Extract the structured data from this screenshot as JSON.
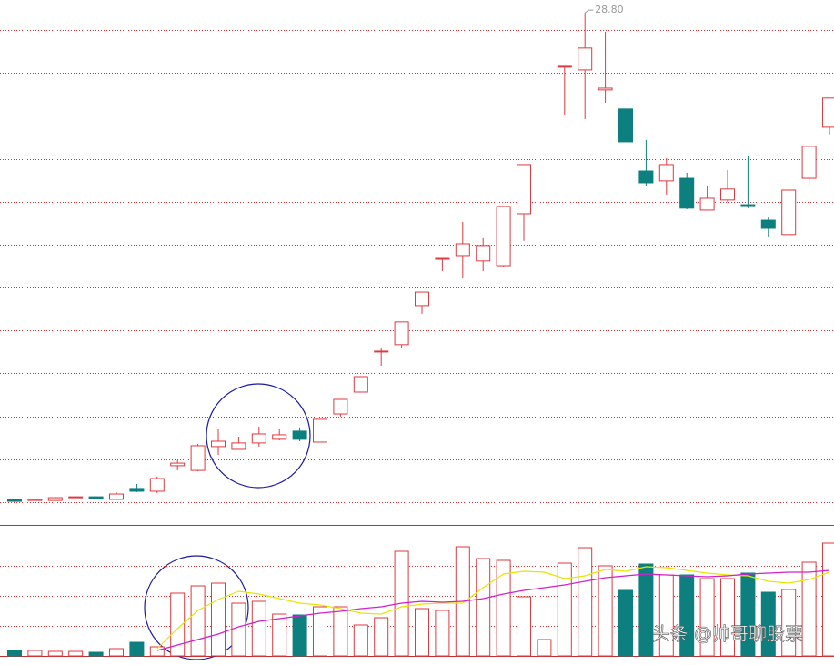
{
  "chart_data": [
    {
      "type": "candlestick",
      "up_color": "#e0393e",
      "down_color": "#0d7f7f",
      "grid": true,
      "ylim": [
        6,
        29.4
      ],
      "yticks": [
        6,
        8,
        10,
        12,
        14,
        16,
        18,
        20,
        22,
        24,
        26,
        28
      ],
      "annotation": "28.80",
      "open": [
        6.13,
        6.08,
        6.08,
        6.21,
        6.25,
        6.13,
        6.64,
        6.51,
        7.7,
        7.48,
        8.59,
        8.46,
        8.76,
        8.93,
        9.31,
        8.8,
        10.11,
        11.13,
        13.0,
        13.34,
        15.16,
        17.32,
        17.49,
        17.24,
        17.02,
        19.44,
        null,
        26.27,
        26.14,
        25.21,
        24.32,
        21.43,
        20.97,
        21.09,
        19.61,
        20.08,
        19.86,
        19.14,
        18.47,
        21.09,
        23.47
      ],
      "high": [
        6.17,
        6.13,
        6.25,
        6.25,
        6.25,
        6.47,
        6.85,
        7.19,
        7.95,
        8.71,
        9.39,
        9.05,
        9.52,
        9.39,
        9.48,
        9.86,
        10.79,
        11.85,
        13.17,
        14.4,
        15.79,
        17.36,
        19.06,
        18.3,
        19.78,
        21.73,
        null,
        26.31,
        28.8,
        27.92,
        24.32,
        22.88,
        22.03,
        21.35,
        20.71,
        21.48,
        22.11,
        19.31,
        20.54,
        22.58,
        24.83
      ],
      "low": [
        6.0,
        6.08,
        6.08,
        6.21,
        6.17,
        6.13,
        6.47,
        6.42,
        7.48,
        7.44,
        8.2,
        8.46,
        8.59,
        8.88,
        8.84,
        8.8,
        9.99,
        11.13,
        12.36,
        13.17,
        14.78,
        16.77,
        16.43,
        16.77,
        16.94,
        18.17,
        null,
        24.06,
        23.85,
        24.61,
        22.79,
        20.71,
        20.33,
        19.65,
        19.61,
        19.99,
        19.7,
        18.38,
        18.47,
        20.71,
        23.13
      ],
      "close": [
        6.04,
        6.13,
        6.21,
        6.25,
        6.17,
        6.38,
        6.51,
        7.1,
        7.82,
        8.63,
        8.84,
        8.76,
        9.18,
        9.14,
        8.93,
        9.86,
        10.79,
        11.85,
        13.04,
        14.4,
        15.79,
        17.36,
        18.04,
        17.96,
        19.78,
        21.73,
        null,
        26.31,
        27.16,
        25.29,
        22.79,
        20.88,
        21.73,
        19.7,
        20.16,
        20.59,
        19.82,
        18.76,
        20.54,
        22.58,
        24.83
      ]
    },
    {
      "type": "bar",
      "ylim": [
        0,
        140
      ],
      "yticks": [
        33,
        66,
        99
      ],
      "grid": true,
      "values": [
        6,
        6,
        5,
        5,
        4,
        8,
        15,
        10,
        69,
        77,
        80,
        58,
        60,
        46,
        45,
        54,
        54,
        34,
        42,
        115,
        52,
        50,
        120,
        107,
        105,
        65,
        18,
        102,
        119,
        99,
        72,
        101,
        89,
        89,
        85,
        85,
        91,
        70,
        73,
        103,
        124
      ],
      "series": [
        {
          "color": "#e6e600",
          "values": [
            null,
            null,
            null,
            null,
            null,
            null,
            null,
            8,
            30,
            50,
            62,
            71,
            68,
            63,
            58,
            56,
            52,
            47,
            46,
            54,
            57,
            58,
            58,
            75,
            90,
            93,
            92,
            85,
            88,
            95,
            93,
            98,
            97,
            94,
            91,
            89,
            88,
            82,
            80,
            84,
            92
          ]
        },
        {
          "color": "#d020d0",
          "values": [
            null,
            null,
            null,
            null,
            null,
            null,
            null,
            6,
            12,
            18,
            24,
            32,
            38,
            41,
            44,
            47,
            49,
            52,
            54,
            58,
            60,
            59,
            60,
            63,
            68,
            72,
            75,
            78,
            82,
            86,
            88,
            90,
            89,
            88,
            87,
            88,
            90,
            91,
            92,
            92,
            94
          ]
        }
      ]
    }
  ],
  "watermark": "头条 @帅哥聊股票"
}
